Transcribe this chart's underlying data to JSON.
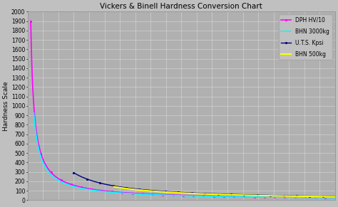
{
  "title": "Vickers & Binell Hardness Conversion Chart",
  "ylabel": "Hardness Scale",
  "ylim": [
    0,
    2000
  ],
  "xlim": [
    0,
    100
  ],
  "yticks": [
    0,
    100,
    200,
    300,
    400,
    500,
    600,
    700,
    800,
    900,
    1000,
    1100,
    1200,
    1300,
    1400,
    1500,
    1600,
    1700,
    1800,
    1900,
    2000
  ],
  "background_color": "#c0c0c0",
  "plot_bg_color": "#b0b0b0",
  "grid_color": "#d8d8d8",
  "title_fontsize": 7.5,
  "ylabel_fontsize": 6.5,
  "tick_fontsize": 5.5,
  "legend_fontsize": 5.5,
  "series": {
    "UTS": {
      "label": "U.T.S. Kpsi",
      "color": "#000080",
      "linewidth": 1.0
    },
    "DPH": {
      "label": "DPH HV/10",
      "color": "#ff00ff",
      "linewidth": 1.2
    },
    "BHN500": {
      "label": "BHN 500kg",
      "color": "#ffff00",
      "linewidth": 1.5
    },
    "BHN3000": {
      "label": "BHN 3000kg",
      "color": "#00ffff",
      "linewidth": 1.2
    }
  }
}
